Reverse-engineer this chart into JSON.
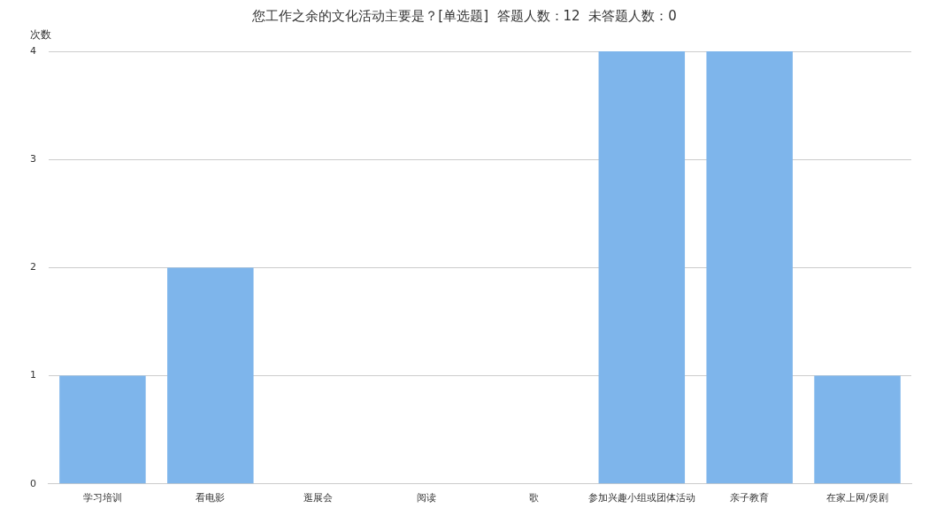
{
  "chart_data": {
    "type": "bar",
    "title": "您工作之余的文化活动主要是？[单选题]  答题人数：12  未答题人数：0",
    "ylabel": "次数",
    "categories": [
      "学习培训",
      "看电影",
      "逛展会",
      "阅读",
      "歌",
      "参加兴趣小组或团体活动",
      "亲子教育",
      "在家上网/煲剧"
    ],
    "values": [
      1,
      2,
      0,
      0,
      0,
      4,
      4,
      1
    ],
    "color": "#7eb5eb",
    "ylim": [
      0,
      4
    ],
    "yticks": [
      0,
      1,
      2,
      3,
      4
    ],
    "grid": "y",
    "legend": false
  }
}
